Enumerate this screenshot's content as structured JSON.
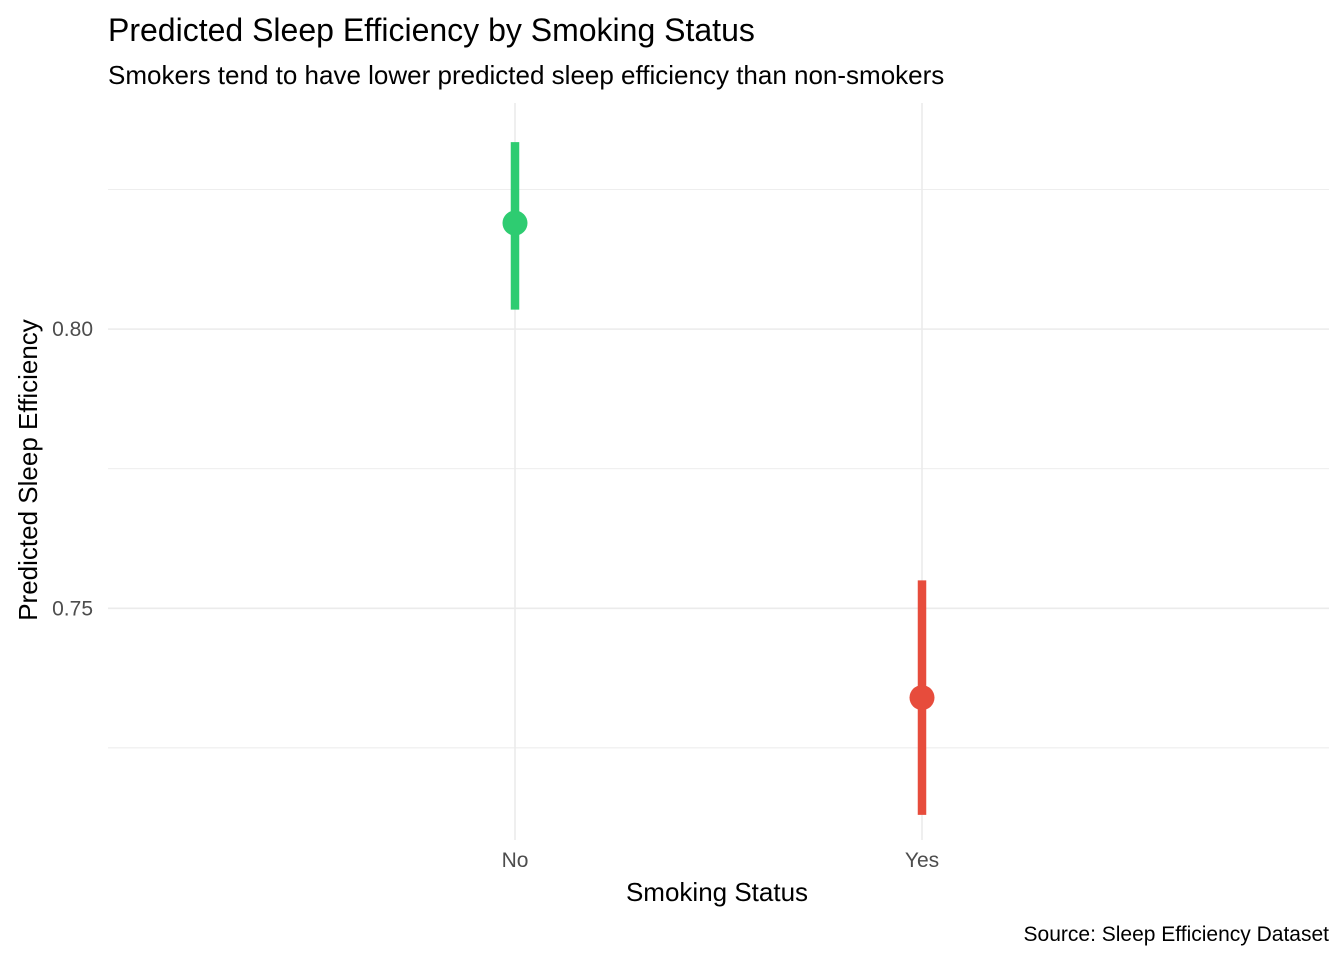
{
  "chart_data": {
    "type": "pointrange",
    "title": "Predicted Sleep Efficiency by Smoking Status",
    "subtitle": "Smokers tend to have lower predicted sleep efficiency than non-smokers",
    "caption": "Source: Sleep Efficiency Dataset",
    "xlabel": "Smoking Status",
    "ylabel": "Predicted Sleep Efficiency",
    "categories": [
      "No",
      "Yes"
    ],
    "y_ticks": [
      0.75,
      0.8
    ],
    "y_tick_labels": [
      "0.75",
      "0.80"
    ],
    "y_minor_ticks": [
      0.725,
      0.775,
      0.825
    ],
    "ylim": [
      0.7085,
      0.8405
    ],
    "grid": true,
    "legend": "none",
    "points": [
      {
        "category": "No",
        "estimate": 0.819,
        "lower": 0.8035,
        "upper": 0.8335,
        "color": "#2ecc71"
      },
      {
        "category": "Yes",
        "estimate": 0.734,
        "lower": 0.713,
        "upper": 0.755,
        "color": "#e74c3c"
      }
    ]
  }
}
